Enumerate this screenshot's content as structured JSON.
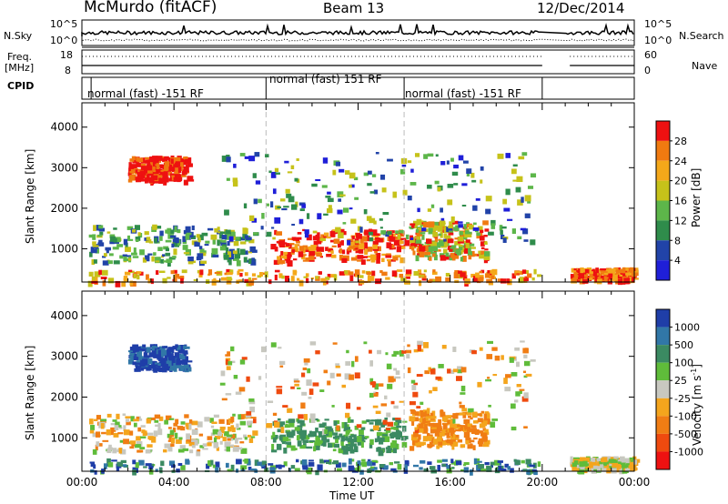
{
  "header": {
    "station": "McMurdo (fitACF)",
    "beam": "Beam 13",
    "date": "12/Dec/2014"
  },
  "strip_labels": {
    "nsky": "N.Sky",
    "nsearch": "N.Search",
    "freq": "Freq.",
    "freq_unit": "[MHz]",
    "nave": "Nave",
    "cpid": "CPID"
  },
  "strip_ticks": {
    "noise_left": [
      "10^5",
      "10^0"
    ],
    "noise_right": [
      "10^5",
      "10^0"
    ],
    "freq_left": [
      "18",
      "8"
    ],
    "freq_right": [
      "60",
      "0"
    ]
  },
  "cpid_segments": [
    {
      "label": "normal (fast) -151 RF",
      "start_hour": 0.4,
      "end_hour": 8.0
    },
    {
      "label": "normal (fast) 151 RF",
      "start_hour": 8.0,
      "end_hour": 14.0
    },
    {
      "label": "normal (fast) -151 RF",
      "start_hour": 14.0,
      "end_hour": 20.0
    }
  ],
  "chart_data": [
    {
      "type": "heatmap",
      "panel": "power",
      "ylabel": "Slant Range [km]",
      "ylim": [
        180,
        4600
      ],
      "yticks": [
        "1000",
        "2000",
        "3000",
        "4000"
      ],
      "xlim": [
        0,
        24
      ],
      "colorbar_label": "Power [dB]",
      "colorbar_ticks": [
        "28",
        "24",
        "20",
        "16",
        "12",
        "8",
        "4"
      ],
      "colors": [
        "#ee1111",
        "#f07a10",
        "#f4a81a",
        "#c6c21a",
        "#5db64a",
        "#2f8c4b",
        "#2143a8",
        "#1f1fd8"
      ]
    },
    {
      "type": "heatmap",
      "panel": "velocity",
      "ylabel": "Slant Range [km]",
      "ylim": [
        180,
        4600
      ],
      "yticks": [
        "1000",
        "2000",
        "3000",
        "4000"
      ],
      "xlim": [
        0,
        24
      ],
      "xticks": [
        "00:00",
        "04:00",
        "08:00",
        "12:00",
        "16:00",
        "20:00",
        "00:00"
      ],
      "xlabel": "Time UT",
      "colorbar_label": "Velocity [m s^-1]",
      "colorbar_ticks": [
        "1000",
        "500",
        "100",
        "25",
        "-25",
        "-100",
        "-500",
        "-1000"
      ],
      "colors": [
        "#1f3ea8",
        "#3177a7",
        "#3b8a62",
        "#5fbc3a",
        "#c8c8c0",
        "#f4a51d",
        "#f07d14",
        "#ef4a0f",
        "#ee1111"
      ]
    }
  ]
}
